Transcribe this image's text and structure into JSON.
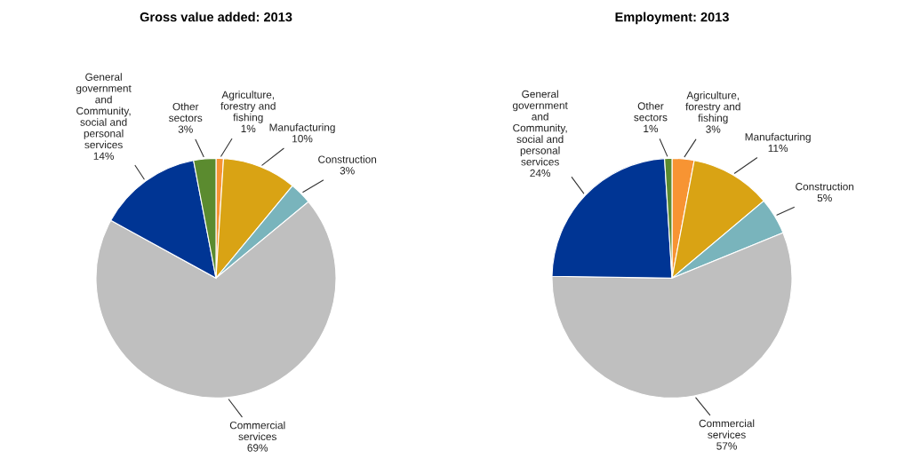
{
  "chart_data": [
    {
      "type": "pie",
      "title": "Gross value added: 2013",
      "categories": [
        "Agriculture,\nforestry and\nfishing",
        "Manufacturing",
        "Construction",
        "Commercial\nservices",
        "General\ngovernment\nand\nCommunity,\nsocial and\npersonal\nservices",
        "Other\nsectors"
      ],
      "values": [
        1,
        10,
        3,
        69,
        14,
        3
      ],
      "value_labels": [
        "1%",
        "10%",
        "3%",
        "69%",
        "14%",
        "3%"
      ],
      "colors": [
        "#f79433",
        "#d9a314",
        "#79b4bc",
        "#bfbfbf",
        "#003594",
        "#5b8b2f"
      ],
      "legend": false
    },
    {
      "type": "pie",
      "title": "Employment: 2013",
      "categories": [
        "Agriculture,\nforestry and\nfishing",
        "Manufacturing",
        "Construction",
        "Commercial\nservices",
        "General\ngovernment\nand\nCommunity,\nsocial and\npersonal\nservices",
        "Other\nsectors"
      ],
      "values": [
        3,
        11,
        5,
        57,
        24,
        1
      ],
      "value_labels": [
        "3%",
        "11%",
        "5%",
        "57%",
        "24%",
        "1%"
      ],
      "colors": [
        "#f79433",
        "#d9a314",
        "#79b4bc",
        "#bfbfbf",
        "#003594",
        "#5b8b2f"
      ],
      "legend": false
    }
  ]
}
